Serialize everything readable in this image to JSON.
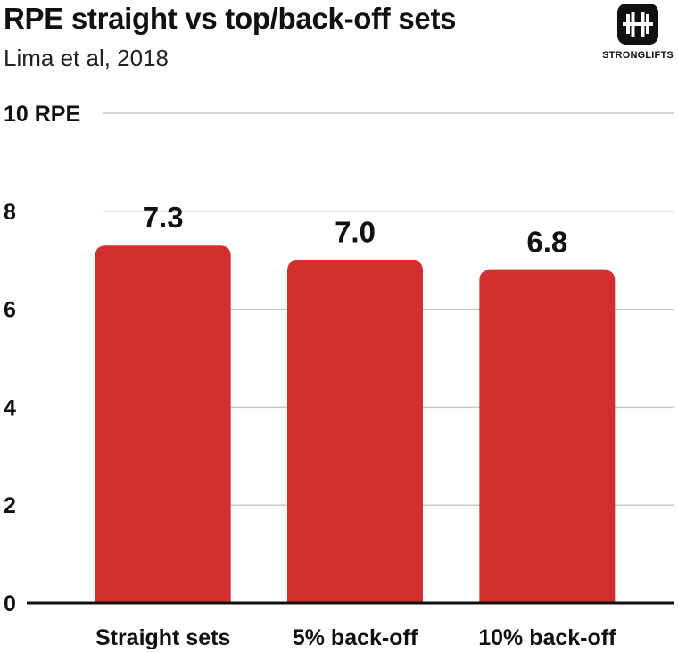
{
  "title": "RPE straight vs top/back-off sets",
  "subtitle": "Lima et al, 2018",
  "logo": {
    "text": "STRONGLIFTS",
    "icon": "barbell-icon"
  },
  "chart_data": {
    "type": "bar",
    "title": "RPE straight vs top/back-off sets",
    "subtitle": "Lima et al, 2018",
    "categories": [
      "Straight sets",
      "5% back-off",
      "10% back-off"
    ],
    "values": [
      7.3,
      7.0,
      6.8
    ],
    "data_labels": [
      "7.3",
      "7.0",
      "6.8"
    ],
    "y_ticks": [
      0,
      2,
      4,
      6,
      8,
      10
    ],
    "y_tick_labels": [
      "0",
      "2",
      "4",
      "6",
      "8",
      "10 RPE"
    ],
    "ylim": [
      0,
      10
    ],
    "grid": true,
    "colors": {
      "bar": "#d32f2f",
      "grid": "#c8c8c8",
      "axis": "#111111"
    }
  }
}
